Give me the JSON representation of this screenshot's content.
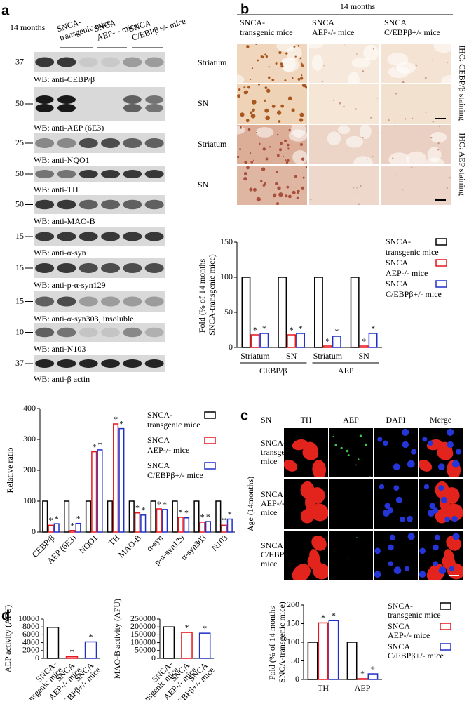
{
  "panel_labels": [
    "a",
    "b",
    "c",
    "d"
  ],
  "western_blot": {
    "timepoint": "14 months",
    "groups": [
      "SNCA-transgenic mice",
      "SNCA AEP-/- mice",
      "SNCA C/EBPβ+/- mice"
    ],
    "rows": [
      {
        "marker": "37",
        "label": "WB: anti-CEBP/β"
      },
      {
        "marker": "50",
        "label": "WB: anti-AEP (6E3)"
      },
      {
        "marker": "25",
        "label": "WB: anti-NQO1"
      },
      {
        "marker": "50",
        "label": "WB: anti-TH"
      },
      {
        "marker": "50",
        "label": "WB: anti-MAO-B"
      },
      {
        "marker": "15",
        "label": "WB: anti-α-syn"
      },
      {
        "marker": "15",
        "label": "WB: anti-p-α-syn129"
      },
      {
        "marker": "15",
        "label": "WB: anti-α-syn303, insoluble"
      },
      {
        "marker": "10",
        "label": "WB: anti-N103"
      },
      {
        "marker": "37",
        "label": "WB: anti-β actin"
      }
    ]
  },
  "ihc": {
    "timepoint": "14 months",
    "groups": [
      "SNCA-transgenic mice",
      "SNCA AEP-/- mice",
      "SNCA C/EBPβ+/- mice"
    ],
    "rows": [
      "Striatum",
      "SN",
      "Striatum",
      "SN"
    ],
    "stains": [
      "IHC: CEBP/β staining",
      "IHC: AEP staining"
    ]
  },
  "immunofluorescence": {
    "region": "SN",
    "channels": [
      "TH",
      "AEP",
      "DAPI",
      "Merge"
    ],
    "axis_label": "Age (14months)",
    "groups": [
      "SNCA-transgenic mice",
      "SNCA AEP-/- mice",
      "SNCA C/EBPβ+/- mice"
    ]
  },
  "chart_data": [
    {
      "type": "bar",
      "ylabel": "Relative ratio",
      "categories": [
        "CEBP/β",
        "AEP (6E3)",
        "NQO1",
        "TH",
        "MAO-B",
        "α-syn",
        "p-α-syn129",
        "α-syn303",
        "N103"
      ],
      "series": [
        {
          "name": "SNCA-transgenic mice",
          "color": "#000000",
          "values": [
            100,
            100,
            100,
            100,
            100,
            100,
            100,
            100,
            100
          ]
        },
        {
          "name": "SNCA AEP-/- mice",
          "color": "#e8141c",
          "values": [
            22,
            5,
            260,
            350,
            62,
            75,
            48,
            32,
            22
          ],
          "annotations": [
            "*",
            "*",
            "*",
            "*",
            "*",
            "*",
            "*",
            "*",
            "*"
          ]
        },
        {
          "name": "SNCA C/EBPβ+/- mice",
          "color": "#1f2fc8",
          "values": [
            27,
            28,
            266,
            335,
            55,
            73,
            46,
            34,
            42
          ],
          "annotations": [
            "*",
            "*",
            "*",
            "*",
            "*",
            "*",
            "*",
            "*",
            "*"
          ]
        }
      ],
      "ylim": [
        0,
        400
      ],
      "yticks": [
        0,
        100,
        200,
        300,
        400
      ]
    },
    {
      "type": "bar",
      "ylabel": "Fold (% of 14 months SNCA-transgenic mice)",
      "categories": [
        "Striatum",
        "SN",
        "Striatum",
        "SN"
      ],
      "groups": [
        "CEBP/β",
        "AEP"
      ],
      "series": [
        {
          "name": "SNCA-transgenic mice",
          "color": "#000000",
          "values": [
            100,
            100,
            100,
            100
          ]
        },
        {
          "name": "SNCA AEP-/- mice",
          "color": "#e8141c",
          "values": [
            18,
            18,
            2,
            2
          ],
          "annotations": [
            "*",
            "*",
            "*",
            "*"
          ]
        },
        {
          "name": "SNCA C/EBPβ+/- mice",
          "color": "#1f2fc8",
          "values": [
            20,
            20,
            16,
            20
          ],
          "annotations": [
            "*",
            "*",
            "*",
            "*"
          ]
        }
      ],
      "ylim": [
        0,
        150
      ],
      "yticks": [
        0,
        50,
        100,
        150
      ]
    },
    {
      "type": "bar",
      "ylabel": "AEP activity (AFU)",
      "categories": [
        "SNCA-transgenic mice",
        "SNCA AEP-/- mice",
        "SNCA C/EBPβ+/- mice"
      ],
      "values": [
        7900,
        400,
        4200
      ],
      "colors": [
        "#000000",
        "#e8141c",
        "#1f2fc8"
      ],
      "annotations": [
        null,
        "*",
        "*"
      ],
      "ylim": [
        0,
        10000
      ],
      "yticks": [
        0,
        2000,
        4000,
        6000,
        8000,
        10000
      ]
    },
    {
      "type": "bar",
      "ylabel": "MAO-B activity (AFU)",
      "categories": [
        "SNCA-transgenic mice",
        "SNCA AEP-/- mice",
        "SNCA C/EBPβ+/- mice"
      ],
      "values": [
        200000,
        165000,
        160000
      ],
      "colors": [
        "#000000",
        "#e8141c",
        "#1f2fc8"
      ],
      "annotations": [
        null,
        "*",
        "*"
      ],
      "ylim": [
        0,
        250000
      ],
      "yticks": [
        0,
        50000,
        100000,
        150000,
        200000,
        250000
      ]
    },
    {
      "type": "bar",
      "ylabel": "Fold (% of 14 months SNCA-transgenic mice)",
      "categories": [
        "TH",
        "AEP"
      ],
      "series": [
        {
          "name": "SNCA-transgenic mice",
          "color": "#000000",
          "values": [
            100,
            100
          ]
        },
        {
          "name": "SNCA AEP-/- mice",
          "color": "#e8141c",
          "values": [
            152,
            2
          ],
          "annotations": [
            "*",
            "*"
          ]
        },
        {
          "name": "SNCA C/EBPβ+/- mice",
          "color": "#1f2fc8",
          "values": [
            158,
            15
          ],
          "annotations": [
            "*",
            "*"
          ]
        }
      ],
      "ylim": [
        0,
        200
      ],
      "yticks": [
        0,
        50,
        100,
        150,
        200
      ]
    }
  ]
}
